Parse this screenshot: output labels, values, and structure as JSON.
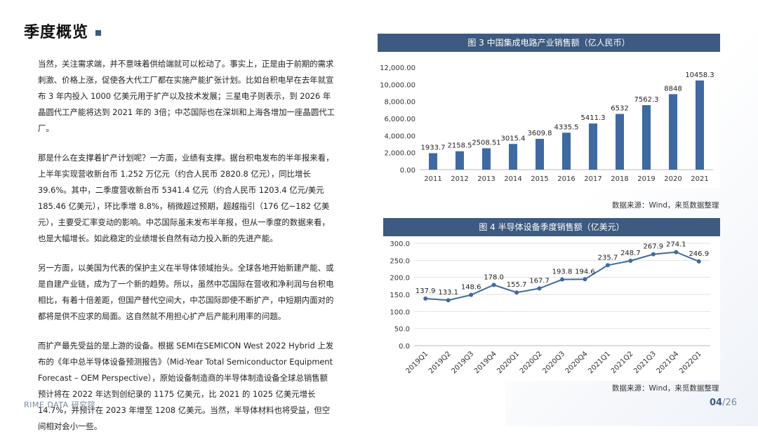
{
  "page": {
    "title": "季度概览",
    "footer_brand": "RIME DATA 研究院",
    "page_current": "04",
    "page_total": "/26"
  },
  "paragraphs": [
    "当然，关注需求端，并不意味着供给端就可以松动了。事实上，正是由于前期的需求刺激、价格上涨，促使各大代工厂都在实施产能扩张计划。比如台积电早在去年就宣布 3 年内投入 1000 亿美元用于扩产以及技术发展；三星电子则表示，到 2026 年晶圆代工产能将达到 2021 年的 3倍；中芯国际也在深圳和上海各增加一座晶圆代工厂。",
    "那是什么在支撑着扩产计划呢？一方面，业绩有支撑。据台积电发布的半年报来看，上半年实现营收新台币 1.252 万亿元（约合人民币 2820.8 亿元），同比增长 39.6%。其中，二季度营收新台币 5341.4 亿元（约合人民币 1203.4 亿元/美元 185.46 亿美元），环比季增 8.8%，稍微超过预期，超越指引（176 亿~182 亿美元），主要受汇率变动的影响。中芯国际虽未发布半年报，但从一季度的数据来看，也是大幅增长。如此稳定的业绩增长自然有动力投入新的先进产能。",
    "另一方面，以美国为代表的保护主义在半导体领域抬头。全球各地开始新建产能、或是自建产业链，成为了一个新的趋势。所以，虽然中芯国际在营收和净利润与台积电相比，有着十倍差距，但国产替代空间大，中芯国际即使不断扩产，中短期内面对的都将是供不应求的局面。这自然就不用担心扩产后产能利用率的问题。",
    "而扩产最先受益的是上游的设备。根据 SEMI在SEMICON West 2022 Hybrid 上发布的《年中总半导体设备预测报告》（Mid-Year Total Semiconductor Equipment Forecast – OEM Perspective），原始设备制造商的半导体制造设备全球总销售额预计将在 2022 年达到创纪录的 1175 亿美元，比 2021 的 1025 亿美元增长 14.7%，并预计在 2023 年增至 1208 亿美元。当然，半导体材料也将受益，但空间相对会小一些。"
  ],
  "chart_data": [
    {
      "type": "bar",
      "title": "图 3  中国集成电路产业销售额（亿人民币）",
      "categories": [
        "2011",
        "2012",
        "2013",
        "2014",
        "2015",
        "2016",
        "2017",
        "2018",
        "2019",
        "2020",
        "2021"
      ],
      "values": [
        1933.7,
        2158.5,
        2508.51,
        3015.4,
        3609.8,
        4335.5,
        5411.3,
        6532,
        7562.3,
        8848,
        10458.3
      ],
      "data_labels": [
        "1933.7",
        "2158.5",
        "2508.51",
        "3015.4",
        "3609.8",
        "4335.5",
        "5411.3",
        "6532",
        "7562.3",
        "8848",
        "10458.3"
      ],
      "ylim": [
        0,
        12000
      ],
      "yticks": [
        0,
        2000,
        4000,
        6000,
        8000,
        10000,
        12000
      ],
      "ytick_labels": [
        "0.00",
        "2,000.00",
        "4,000.00",
        "6,000.00",
        "8,000.00",
        "10,000.00",
        "12,000.00"
      ],
      "grid": false,
      "color": "#3d6aa2",
      "source": "数据来源：Wind，来觅数据整理"
    },
    {
      "type": "line",
      "title": "图 4  半导体设备季度销售额（亿美元）",
      "categories": [
        "2019Q1",
        "2019Q2",
        "2019Q3",
        "2019Q4",
        "2020Q1",
        "2020Q2",
        "2020Q3",
        "2020Q4",
        "2021Q1",
        "2021Q2",
        "2021Q3",
        "2021Q4",
        "2022Q1"
      ],
      "values": [
        137.9,
        133.1,
        148.6,
        178.0,
        155.7,
        167.7,
        193.8,
        194.6,
        235.7,
        248.7,
        267.9,
        274.1,
        246.9
      ],
      "data_labels": [
        "137.9",
        "133.1",
        "148.6",
        "178.0",
        "155.7",
        "167.7",
        "193.8",
        "194.6",
        "235.7",
        "248.7",
        "267.9",
        "274.1",
        "246.9"
      ],
      "ylim": [
        0,
        300
      ],
      "yticks": [
        0,
        50,
        100,
        150,
        200,
        250,
        300
      ],
      "ytick_labels": [
        "0.0",
        "50.0",
        "100.0",
        "150.0",
        "200.0",
        "250.0",
        "300.0"
      ],
      "grid": true,
      "color": "#3d6aa2",
      "source": "数据来源：Wind，来觅数据整理"
    }
  ]
}
